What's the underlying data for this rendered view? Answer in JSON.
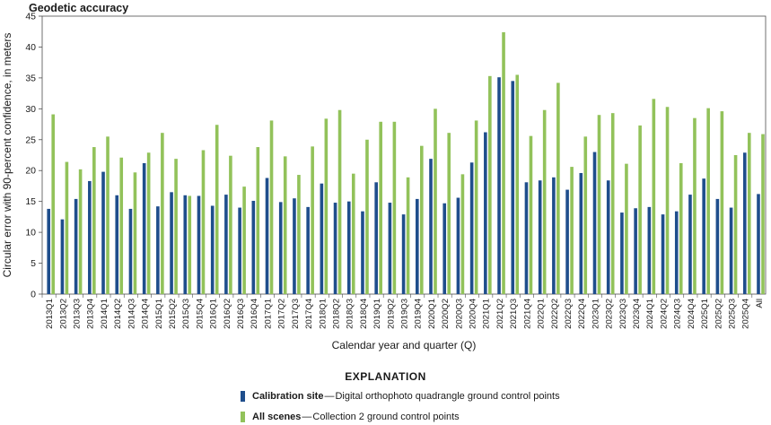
{
  "chart_data": {
    "type": "bar",
    "title": "Geodetic accuracy",
    "xlabel": "Calendar year and quarter (Q)",
    "ylabel": "Circular error with 90-percent confidence, in meters",
    "ylim": [
      0,
      45
    ],
    "yticks": [
      0,
      5,
      10,
      15,
      20,
      25,
      30,
      35,
      40,
      45
    ],
    "grid": false,
    "legend_heading": "EXPLANATION",
    "legend_placement": "bottom-center",
    "categories": [
      "2013Q1",
      "2013Q2",
      "2013Q3",
      "2013Q4",
      "2014Q1",
      "2014Q2",
      "2014Q3",
      "2014Q4",
      "2015Q1",
      "2015Q2",
      "2015Q3",
      "2015Q4",
      "2016Q1",
      "2016Q2",
      "2016Q3",
      "2016Q4",
      "2017Q1",
      "2017Q2",
      "2017Q3",
      "2017Q4",
      "2018Q1",
      "2018Q2",
      "2018Q3",
      "2018Q4",
      "2019Q1",
      "2019Q2",
      "2019Q3",
      "2019Q4",
      "2020Q1",
      "2020Q2",
      "2020Q3",
      "2020Q4",
      "2021Q1",
      "2021Q2",
      "2021Q3",
      "2021Q4",
      "2022Q1",
      "2022Q2",
      "2022Q3",
      "2022Q4",
      "2023Q1",
      "2023Q2",
      "2023Q3",
      "2023Q4",
      "2024Q1",
      "2024Q2",
      "2024Q3",
      "2024Q4",
      "2025Q1",
      "2025Q2",
      "2025Q3",
      "2025Q4",
      "All"
    ],
    "series": [
      {
        "name": "Calibration site",
        "description": "Digital orthophoto quadrangle ground control points",
        "color": "#1f4e8c",
        "values": [
          13.8,
          12.1,
          15.4,
          18.3,
          19.8,
          16.0,
          13.8,
          21.2,
          14.2,
          16.5,
          16.0,
          15.9,
          14.3,
          16.1,
          14.0,
          15.1,
          18.8,
          14.9,
          15.5,
          14.1,
          17.9,
          14.8,
          15.0,
          13.4,
          18.1,
          14.8,
          12.9,
          15.4,
          21.9,
          14.7,
          15.6,
          21.3,
          26.2,
          35.1,
          34.5,
          18.1,
          18.4,
          18.9,
          16.9,
          19.6,
          23.0,
          18.4,
          13.2,
          13.9,
          14.1,
          12.9,
          13.4,
          16.1,
          18.7,
          15.4,
          14.0,
          22.9,
          16.2
        ]
      },
      {
        "name": "All scenes",
        "description": "Collection 2 ground control points",
        "color": "#92c25a",
        "values": [
          29.1,
          21.4,
          20.2,
          23.8,
          25.5,
          22.1,
          19.7,
          22.9,
          26.1,
          21.9,
          15.9,
          23.3,
          27.4,
          22.4,
          17.4,
          23.8,
          28.1,
          22.3,
          19.3,
          23.9,
          28.4,
          29.8,
          19.5,
          25.0,
          27.9,
          27.9,
          18.9,
          24.0,
          30.0,
          26.1,
          19.4,
          28.1,
          35.3,
          42.4,
          35.5,
          25.6,
          29.8,
          34.2,
          20.6,
          25.5,
          29.0,
          29.3,
          21.1,
          27.3,
          31.6,
          30.3,
          21.2,
          28.5,
          30.1,
          29.6,
          22.5,
          26.1,
          25.9
        ]
      }
    ]
  }
}
